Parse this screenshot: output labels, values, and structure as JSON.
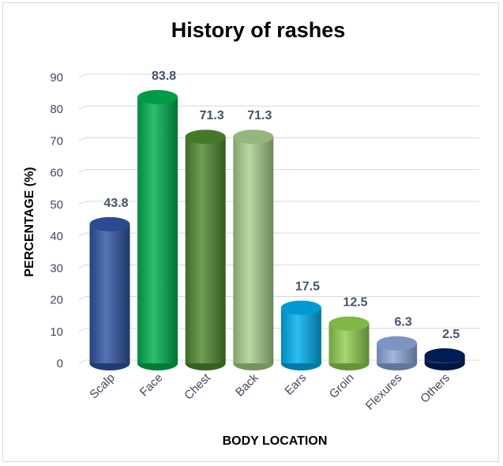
{
  "chart_data": {
    "type": "bar",
    "title": "History of rashes",
    "xlabel": "BODY LOCATION",
    "ylabel": "PERCENTAGE (%)",
    "ylim": [
      0,
      90
    ],
    "yticks": [
      0,
      10,
      20,
      30,
      40,
      50,
      60,
      70,
      80,
      90
    ],
    "grid": true,
    "legend": "none",
    "categories": [
      "Scalp",
      "Face",
      "Chest",
      "Back",
      "Ears",
      "Groin",
      "Flexures",
      "Others"
    ],
    "values": [
      43.8,
      83.8,
      71.3,
      71.3,
      17.5,
      12.5,
      6.3,
      2.5
    ],
    "data_labels": [
      "43.8",
      "83.8",
      "71.3",
      "71.3",
      "17.5",
      "12.5",
      "6.3",
      "2.5"
    ],
    "colors": [
      "#2f55a4",
      "#00b050",
      "#4e8a2f",
      "#a9d08e",
      "#00b0f0",
      "#92d050",
      "#8ea9db",
      "#002060"
    ]
  }
}
